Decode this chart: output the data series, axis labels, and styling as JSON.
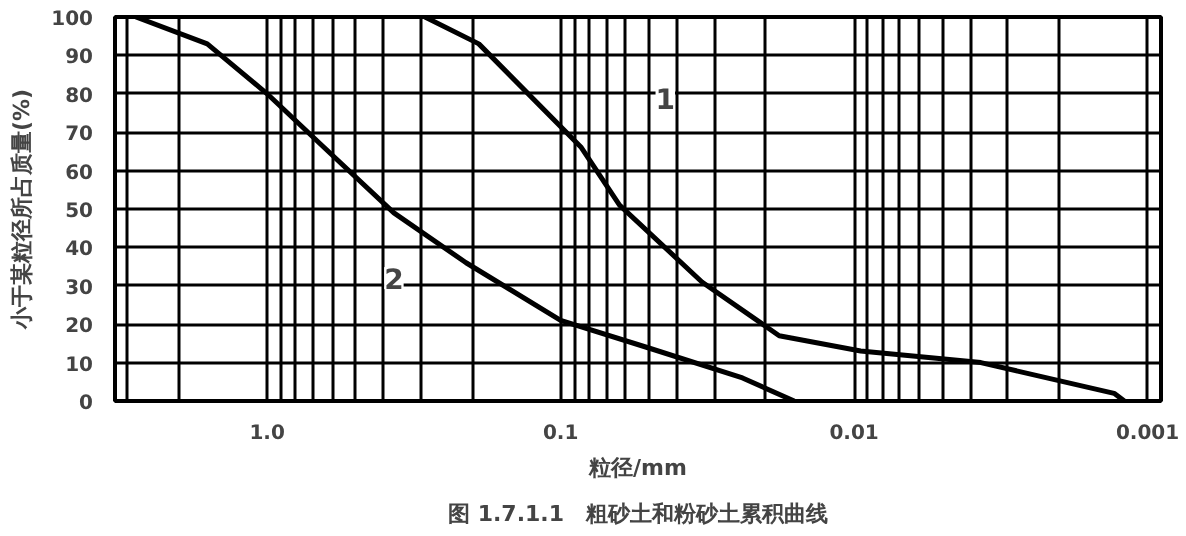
{
  "chart_data": {
    "type": "line",
    "title": "图 1.7.1.1　粗砂土和粉砂土累积曲线",
    "xlabel": "粒径/mm",
    "ylabel": "小于某粒径所占质量(%)",
    "log": "x",
    "xlim": [
      3.3,
      0.0009
    ],
    "ylim": [
      0,
      100
    ],
    "xticks": [
      {
        "value": 3,
        "label": null
      },
      {
        "value": 2,
        "label": null
      },
      {
        "value": 1,
        "label": "1.0"
      },
      {
        "value": 0.9,
        "label": null
      },
      {
        "value": 0.8,
        "label": null
      },
      {
        "value": 0.7,
        "label": null
      },
      {
        "value": 0.6,
        "label": null
      },
      {
        "value": 0.5,
        "label": null
      },
      {
        "value": 0.4,
        "label": null
      },
      {
        "value": 0.3,
        "label": null
      },
      {
        "value": 0.2,
        "label": null
      },
      0.1,
      {
        "value": 0.09,
        "label": null
      },
      {
        "value": 0.08,
        "label": null
      },
      {
        "value": 0.07,
        "label": null
      },
      {
        "value": 0.06,
        "label": null
      },
      {
        "value": 0.05,
        "label": null
      },
      {
        "value": 0.04,
        "label": null
      },
      {
        "value": 0.03,
        "label": null
      },
      {
        "value": 0.02,
        "label": null
      },
      0.01,
      {
        "value": 0.009,
        "label": null
      },
      {
        "value": 0.008,
        "label": null
      },
      {
        "value": 0.007,
        "label": null
      },
      {
        "value": 0.006,
        "label": null
      },
      {
        "value": 0.005,
        "label": null
      },
      {
        "value": 0.004,
        "label": null
      },
      {
        "value": 0.003,
        "label": null
      },
      {
        "value": 0.002,
        "label": null
      },
      0.001
    ],
    "yticks": [
      0,
      10,
      20,
      30,
      40,
      50,
      60,
      70,
      80,
      90,
      100
    ],
    "grid": true,
    "marker": "none",
    "line_style": "solid",
    "series": [
      {
        "color": "#000000",
        "x": [
          0.29,
          0.19,
          0.085,
          0.063,
          0.033,
          0.018,
          0.0095,
          0.0037,
          0.0013,
          0.0012
        ],
        "values": [
          100,
          93,
          66,
          51,
          31,
          17,
          13,
          10,
          2,
          0
        ]
      },
      {
        "color": "#000000",
        "x": [
          2.8,
          1.6,
          1.0,
          0.66,
          0.37,
          0.21,
          0.1,
          0.051,
          0.024,
          0.016
        ],
        "values": [
          100,
          93,
          80,
          67,
          49,
          36,
          21,
          14,
          6,
          0
        ]
      }
    ],
    "annotations": [
      {
        "text": "1",
        "x": 0.044,
        "y": 79
      },
      {
        "text": "2",
        "x": 0.37,
        "y": 32
      }
    ]
  }
}
